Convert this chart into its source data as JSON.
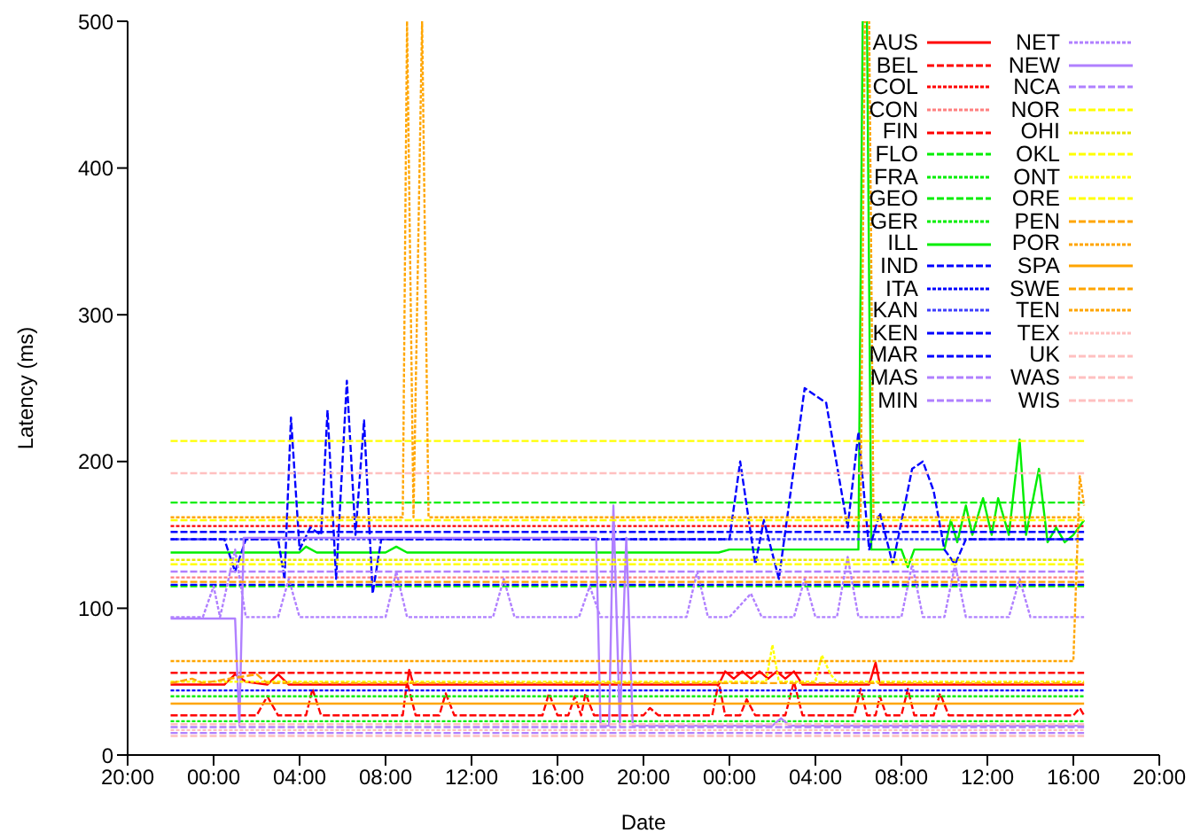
{
  "chart_data": {
    "type": "line",
    "xlabel": "Date",
    "ylabel": "Latency (ms)",
    "xlim": [
      "2000-01-01T20:00",
      "2000-01-03T20:00"
    ],
    "xticks": [
      {
        "value": "2000-01-01T20:00",
        "label": "20:00"
      },
      {
        "value": "2000-01-02T00:00",
        "label": "00:00"
      },
      {
        "value": "2000-01-02T04:00",
        "label": "04:00"
      },
      {
        "value": "2000-01-02T08:00",
        "label": "08:00"
      },
      {
        "value": "2000-01-02T12:00",
        "label": "12:00"
      },
      {
        "value": "2000-01-02T16:00",
        "label": "16:00"
      },
      {
        "value": "2000-01-02T20:00",
        "label": "20:00"
      },
      {
        "value": "2000-01-03T00:00",
        "label": "00:00"
      },
      {
        "value": "2000-01-03T04:00",
        "label": "04:00"
      },
      {
        "value": "2000-01-03T08:00",
        "label": "08:00"
      },
      {
        "value": "2000-01-03T12:00",
        "label": "12:00"
      },
      {
        "value": "2000-01-03T16:00",
        "label": "16:00"
      },
      {
        "value": "2000-01-03T20:00",
        "label": "20:00"
      }
    ],
    "ylim": [
      0,
      500
    ],
    "yticks": [
      0,
      100,
      200,
      300,
      400,
      500
    ],
    "grid": false,
    "legend": "top right",
    "x": [
      "2000-01-01T22:00",
      "2000-01-03T16:30"
    ],
    "series": [
      {
        "name": "AUS",
        "color": "#ff0000",
        "line_style": "solid",
        "x": [
          "2000-01-01T22:00",
          "2000-01-02T00:30",
          "2000-01-02T01:00",
          "2000-01-02T01:30",
          "2000-01-02T02:30",
          "2000-01-02T03:00",
          "2000-01-02T03:30",
          "2000-01-02T09:00",
          "2000-01-02T09:06",
          "2000-01-02T09:18",
          "2000-01-02T23:30",
          "2000-01-02T23:48",
          "2000-01-03T00:12",
          "2000-01-03T00:36",
          "2000-01-03T01:00",
          "2000-01-03T01:24",
          "2000-01-03T01:48",
          "2000-01-03T02:12",
          "2000-01-03T02:36",
          "2000-01-03T03:00",
          "2000-01-03T03:24",
          "2000-01-03T06:30",
          "2000-01-03T06:48",
          "2000-01-03T07:00",
          "2000-01-03T16:30"
        ],
        "values": [
          48,
          48,
          55,
          50,
          48,
          55,
          48,
          48,
          58,
          48,
          48,
          57,
          52,
          57,
          52,
          57,
          52,
          57,
          52,
          57,
          48,
          48,
          63,
          48,
          48
        ]
      },
      {
        "name": "BEL",
        "color": "#ff0000",
        "line_style": "dashed",
        "x": [
          "2000-01-01T22:00",
          "2000-01-02T02:00",
          "2000-01-02T02:30",
          "2000-01-02T03:00",
          "2000-01-02T04:18",
          "2000-01-02T04:36",
          "2000-01-02T05:00",
          "2000-01-02T08:48",
          "2000-01-02T09:00",
          "2000-01-02T09:24",
          "2000-01-02T10:30",
          "2000-01-02T10:48",
          "2000-01-02T11:12",
          "2000-01-02T15:18",
          "2000-01-02T15:36",
          "2000-01-02T16:00",
          "2000-01-02T16:30",
          "2000-01-02T16:48",
          "2000-01-02T17:06",
          "2000-01-02T17:18",
          "2000-01-02T17:42",
          "2000-01-02T20:00",
          "2000-01-02T20:18",
          "2000-01-02T20:42",
          "2000-01-02T23:12",
          "2000-01-02T23:30",
          "2000-01-02T23:48",
          "2000-01-03T00:30",
          "2000-01-03T00:48",
          "2000-01-03T01:12",
          "2000-01-03T02:36",
          "2000-01-03T03:00",
          "2000-01-03T03:24",
          "2000-01-03T05:48",
          "2000-01-03T06:06",
          "2000-01-03T06:24",
          "2000-01-03T06:48",
          "2000-01-03T07:00",
          "2000-01-03T07:18",
          "2000-01-03T08:00",
          "2000-01-03T08:18",
          "2000-01-03T08:36",
          "2000-01-03T09:30",
          "2000-01-03T09:48",
          "2000-01-03T10:12",
          "2000-01-03T16:00",
          "2000-01-03T16:18",
          "2000-01-03T16:30"
        ],
        "values": [
          27,
          27,
          40,
          27,
          27,
          45,
          27,
          27,
          50,
          27,
          27,
          42,
          27,
          27,
          42,
          27,
          27,
          40,
          27,
          42,
          27,
          27,
          32,
          27,
          27,
          50,
          27,
          27,
          38,
          27,
          27,
          50,
          27,
          27,
          45,
          27,
          27,
          40,
          27,
          27,
          45,
          27,
          27,
          42,
          27,
          27,
          32,
          27
        ]
      },
      {
        "name": "COL",
        "color": "#ff0000",
        "line_style": "dotted",
        "values": [
          156,
          156
        ]
      },
      {
        "name": "CON",
        "color": "#ff8080",
        "line_style": "dotted",
        "values": [
          121,
          121
        ]
      },
      {
        "name": "FIN",
        "color": "#ff0000",
        "line_style": "dashed",
        "values": [
          56,
          56
        ]
      },
      {
        "name": "FLO",
        "color": "#00ee00",
        "line_style": "dashed",
        "values": [
          115,
          115
        ]
      },
      {
        "name": "FRA",
        "color": "#00ee00",
        "line_style": "dotted",
        "values": [
          23,
          23
        ]
      },
      {
        "name": "GEO",
        "color": "#00ee00",
        "line_style": "dashed",
        "values": [
          172,
          172
        ]
      },
      {
        "name": "GER",
        "color": "#00ee00",
        "line_style": "dotted",
        "values": [
          40,
          40
        ]
      },
      {
        "name": "ILL",
        "color": "#00ee00",
        "line_style": "solid",
        "x": [
          "2000-01-01T22:00",
          "2000-01-02T04:00",
          "2000-01-02T04:18",
          "2000-01-02T04:48",
          "2000-01-02T08:00",
          "2000-01-02T08:30",
          "2000-01-02T09:00",
          "2000-01-02T23:30",
          "2000-01-03T00:00",
          "2000-01-03T06:00",
          "2000-01-03T06:12",
          "2000-01-03T06:24",
          "2000-01-03T06:36",
          "2000-01-03T08:00",
          "2000-01-03T08:18",
          "2000-01-03T08:36",
          "2000-01-03T10:00",
          "2000-01-03T10:18",
          "2000-01-03T10:36",
          "2000-01-03T11:00",
          "2000-01-03T11:18",
          "2000-01-03T11:48",
          "2000-01-03T12:12",
          "2000-01-03T12:30",
          "2000-01-03T13:00",
          "2000-01-03T13:30",
          "2000-01-03T13:48",
          "2000-01-03T14:24",
          "2000-01-03T14:48",
          "2000-01-03T15:12",
          "2000-01-03T15:36",
          "2000-01-03T16:00",
          "2000-01-03T16:30"
        ],
        "values": [
          138,
          138,
          142,
          138,
          138,
          142,
          138,
          138,
          140,
          140,
          500,
          500,
          140,
          140,
          128,
          140,
          140,
          160,
          145,
          170,
          150,
          175,
          150,
          175,
          150,
          215,
          150,
          195,
          145,
          155,
          145,
          150,
          160
        ]
      },
      {
        "name": "IND",
        "color": "#0000ff",
        "line_style": "dashed",
        "values": [
          152,
          152
        ]
      },
      {
        "name": "ITA",
        "color": "#0000ff",
        "line_style": "dotted",
        "values": [
          44,
          44
        ]
      },
      {
        "name": "KAN",
        "color": "#4040ff",
        "line_style": "dotted",
        "values": [
          147,
          147
        ]
      },
      {
        "name": "KEN",
        "color": "#0000ff",
        "line_style": "dashed",
        "values": [
          116,
          116
        ]
      },
      {
        "name": "MAR",
        "color": "#0000ff",
        "line_style": "dashed",
        "x": [
          "2000-01-01T22:00",
          "2000-01-02T00:30",
          "2000-01-02T01:00",
          "2000-01-02T01:30",
          "2000-01-02T03:00",
          "2000-01-02T03:18",
          "2000-01-02T03:36",
          "2000-01-02T04:00",
          "2000-01-02T04:30",
          "2000-01-02T05:00",
          "2000-01-02T05:18",
          "2000-01-02T05:42",
          "2000-01-02T06:12",
          "2000-01-02T06:36",
          "2000-01-02T07:00",
          "2000-01-02T07:24",
          "2000-01-02T07:48",
          "2000-01-03T00:00",
          "2000-01-03T00:30",
          "2000-01-03T01:12",
          "2000-01-03T01:36",
          "2000-01-03T02:18",
          "2000-01-03T03:30",
          "2000-01-03T04:30",
          "2000-01-03T05:30",
          "2000-01-03T06:00",
          "2000-01-03T06:30",
          "2000-01-03T07:00",
          "2000-01-03T07:36",
          "2000-01-03T08:30",
          "2000-01-03T09:00",
          "2000-01-03T09:30",
          "2000-01-03T10:00",
          "2000-01-03T10:30",
          "2000-01-03T11:00",
          "2000-01-03T16:30"
        ],
        "values": [
          147,
          147,
          125,
          147,
          147,
          120,
          230,
          140,
          155,
          150,
          235,
          120,
          255,
          150,
          228,
          110,
          147,
          147,
          200,
          130,
          160,
          120,
          250,
          240,
          155,
          220,
          140,
          165,
          130,
          195,
          200,
          180,
          140,
          130,
          147,
          147
        ]
      },
      {
        "name": "MAS",
        "color": "#b080ff",
        "line_style": "dashed",
        "values": [
          19,
          19
        ]
      },
      {
        "name": "MIN",
        "color": "#b080ff",
        "line_style": "dashed",
        "values": [
          15,
          15
        ]
      },
      {
        "name": "NET",
        "color": "#b080ff",
        "line_style": "dotted",
        "x": [
          "2000-01-01T22:00",
          "2000-01-01T23:30",
          "2000-01-02T00:00",
          "2000-01-02T00:18",
          "2000-01-02T01:00",
          "2000-01-02T01:30",
          "2000-01-02T03:00",
          "2000-01-02T03:30",
          "2000-01-02T04:00",
          "2000-01-02T08:00",
          "2000-01-02T08:30",
          "2000-01-02T09:00",
          "2000-01-02T13:00",
          "2000-01-02T13:30",
          "2000-01-02T14:00",
          "2000-01-02T17:00",
          "2000-01-02T17:30",
          "2000-01-02T18:00",
          "2000-01-02T22:00",
          "2000-01-02T22:30",
          "2000-01-02T23:00",
          "2000-01-03T00:00",
          "2000-01-03T01:00",
          "2000-01-03T01:30",
          "2000-01-03T03:00",
          "2000-01-03T03:30",
          "2000-01-03T04:00",
          "2000-01-03T05:00",
          "2000-01-03T05:30",
          "2000-01-03T06:00",
          "2000-01-03T08:00",
          "2000-01-03T08:30",
          "2000-01-03T09:00",
          "2000-01-03T10:00",
          "2000-01-03T10:30",
          "2000-01-03T11:00",
          "2000-01-03T13:00",
          "2000-01-03T13:30",
          "2000-01-03T14:00",
          "2000-01-03T16:30"
        ],
        "values": [
          94,
          94,
          115,
          94,
          140,
          94,
          94,
          120,
          94,
          94,
          125,
          94,
          94,
          120,
          94,
          94,
          115,
          94,
          94,
          125,
          94,
          94,
          110,
          94,
          94,
          120,
          94,
          94,
          135,
          94,
          94,
          130,
          94,
          94,
          130,
          94,
          94,
          120,
          94,
          94
        ]
      },
      {
        "name": "NEW",
        "color": "#b080ff",
        "line_style": "solid",
        "x": [
          "2000-01-01T22:00",
          "2000-01-02T01:00",
          "2000-01-02T01:12",
          "2000-01-02T01:24",
          "2000-01-02T17:48",
          "2000-01-02T18:00",
          "2000-01-02T18:24",
          "2000-01-02T18:36",
          "2000-01-02T18:54",
          "2000-01-02T19:12",
          "2000-01-02T19:30",
          "2000-01-02T20:00",
          "2000-01-03T02:00",
          "2000-01-03T02:24",
          "2000-01-03T02:48",
          "2000-01-03T16:30"
        ],
        "values": [
          93,
          93,
          20,
          148,
          148,
          20,
          20,
          170,
          20,
          148,
          20,
          20,
          20,
          25,
          20,
          20
        ]
      },
      {
        "name": "NCA",
        "color": "#b080ff",
        "line_style": "dashed",
        "values": [
          125,
          125
        ]
      },
      {
        "name": "NOR",
        "color": "#ffff00",
        "line_style": "dashed",
        "values": [
          130,
          130
        ]
      },
      {
        "name": "OHI",
        "color": "#e8e800",
        "line_style": "dotted",
        "values": [
          133,
          133
        ]
      },
      {
        "name": "OKL",
        "color": "#ffff00",
        "line_style": "dashed",
        "values": [
          160,
          160
        ]
      },
      {
        "name": "ONT",
        "color": "#ffff00",
        "line_style": "dotted",
        "x": [
          "2000-01-01T22:00",
          "2000-01-03T01:42",
          "2000-01-03T02:00",
          "2000-01-03T02:18",
          "2000-01-03T04:00",
          "2000-01-03T04:18",
          "2000-01-03T04:42",
          "2000-01-03T05:00",
          "2000-01-03T16:30"
        ],
        "values": [
          50,
          50,
          75,
          50,
          50,
          68,
          55,
          50,
          50
        ]
      },
      {
        "name": "ORE",
        "color": "#ffff00",
        "line_style": "dashed",
        "values": [
          214,
          214
        ]
      },
      {
        "name": "PEN",
        "color": "#ffa500",
        "line_style": "dashed",
        "values": [
          118,
          118
        ]
      },
      {
        "name": "POR",
        "color": "#ffa500",
        "line_style": "dotted",
        "x": [
          "2000-01-01T22:00",
          "2000-01-02T08:48",
          "2000-01-02T09:00",
          "2000-01-02T09:18",
          "2000-01-02T09:42",
          "2000-01-02T10:00",
          "2000-01-03T06:06",
          "2000-01-03T06:18",
          "2000-01-03T06:30",
          "2000-01-03T06:42",
          "2000-01-03T16:30"
        ],
        "values": [
          162,
          162,
          500,
          162,
          500,
          162,
          162,
          500,
          500,
          162,
          162
        ]
      },
      {
        "name": "SPA",
        "color": "#ffa500",
        "line_style": "solid",
        "values": [
          35,
          35
        ]
      },
      {
        "name": "SWE",
        "color": "#ffa500",
        "line_style": "dashed",
        "x": [
          "2000-01-01T22:00",
          "2000-01-01T23:00",
          "2000-01-01T23:30",
          "2000-01-02T02:00",
          "2000-01-02T02:30",
          "2000-01-03T16:30"
        ],
        "values": [
          49,
          52,
          49,
          55,
          49,
          49
        ]
      },
      {
        "name": "TEN",
        "color": "#ffa500",
        "line_style": "dotted",
        "x": [
          "2000-01-01T22:00",
          "2000-01-03T16:00",
          "2000-01-03T16:18",
          "2000-01-03T16:30"
        ],
        "values": [
          64,
          64,
          190,
          170
        ]
      },
      {
        "name": "TEX",
        "color": "#ffc0c0",
        "line_style": "dotted",
        "values": [
          17,
          17
        ]
      },
      {
        "name": "UK",
        "color": "#ffc0c0",
        "line_style": "dashed",
        "values": [
          192,
          192
        ]
      },
      {
        "name": "WAS",
        "color": "#ffc0c0",
        "line_style": "dashed",
        "values": [
          13,
          13
        ]
      },
      {
        "name": "WIS",
        "color": "#ffc0c0",
        "line_style": "dashed",
        "values": [
          21,
          21
        ]
      }
    ]
  }
}
